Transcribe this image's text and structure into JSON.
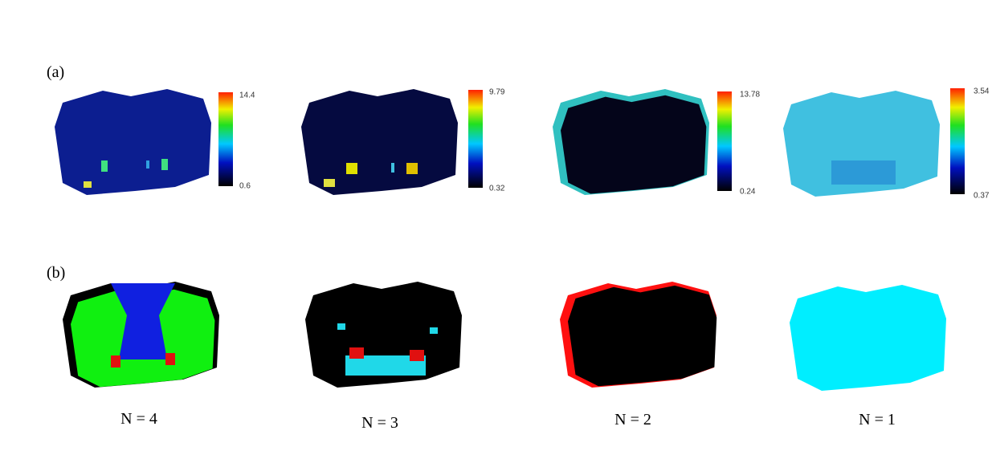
{
  "panel_a": {
    "label": "(a)",
    "colorbars": [
      {
        "max": "14.4",
        "min": "0.6"
      },
      {
        "max": "9.79",
        "min": "0.32"
      },
      {
        "max": "13.78",
        "min": "0.24"
      },
      {
        "max": "3.54",
        "min": "0.37"
      }
    ]
  },
  "panel_b": {
    "label": "(b)",
    "captions": [
      "N = 4",
      "N = 3",
      "N = 2",
      "N = 1"
    ]
  }
}
